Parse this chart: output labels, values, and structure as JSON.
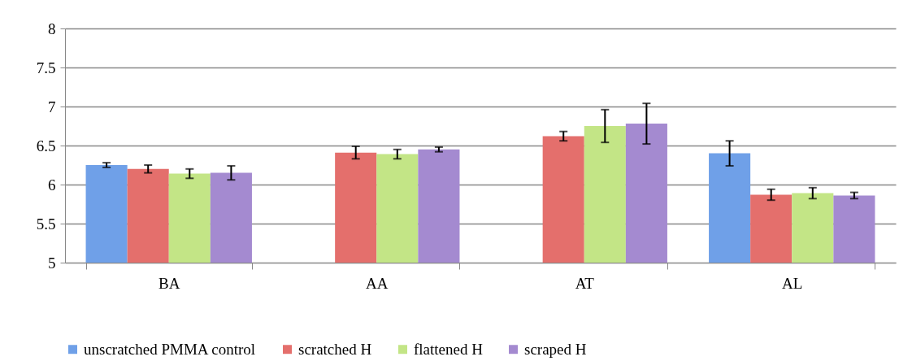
{
  "chart_data": {
    "type": "bar",
    "categories": [
      "BA",
      "AA",
      "AT",
      "AL"
    ],
    "series": [
      {
        "name": "unscratched PMMA control",
        "color": "#6fa0e8",
        "values": [
          6.25,
          null,
          null,
          6.4
        ],
        "errors": [
          0.03,
          null,
          null,
          0.16
        ]
      },
      {
        "name": "scratched H",
        "color": "#e46f6c",
        "values": [
          6.2,
          6.41,
          6.62,
          5.87
        ],
        "errors": [
          0.05,
          0.08,
          0.06,
          0.07
        ]
      },
      {
        "name": "flattened H",
        "color": "#c3e586",
        "values": [
          6.14,
          6.39,
          6.75,
          5.89
        ],
        "errors": [
          0.06,
          0.06,
          0.21,
          0.07
        ]
      },
      {
        "name": "scraped H",
        "color": "#a48ad0",
        "values": [
          6.15,
          6.45,
          6.78,
          5.86
        ],
        "errors": [
          0.09,
          0.03,
          0.26,
          0.04
        ]
      }
    ],
    "ylim": [
      5,
      8
    ],
    "yticks": [
      5,
      5.5,
      6,
      6.5,
      7,
      7.5,
      8
    ],
    "grid": "y",
    "legend": "bottom"
  }
}
